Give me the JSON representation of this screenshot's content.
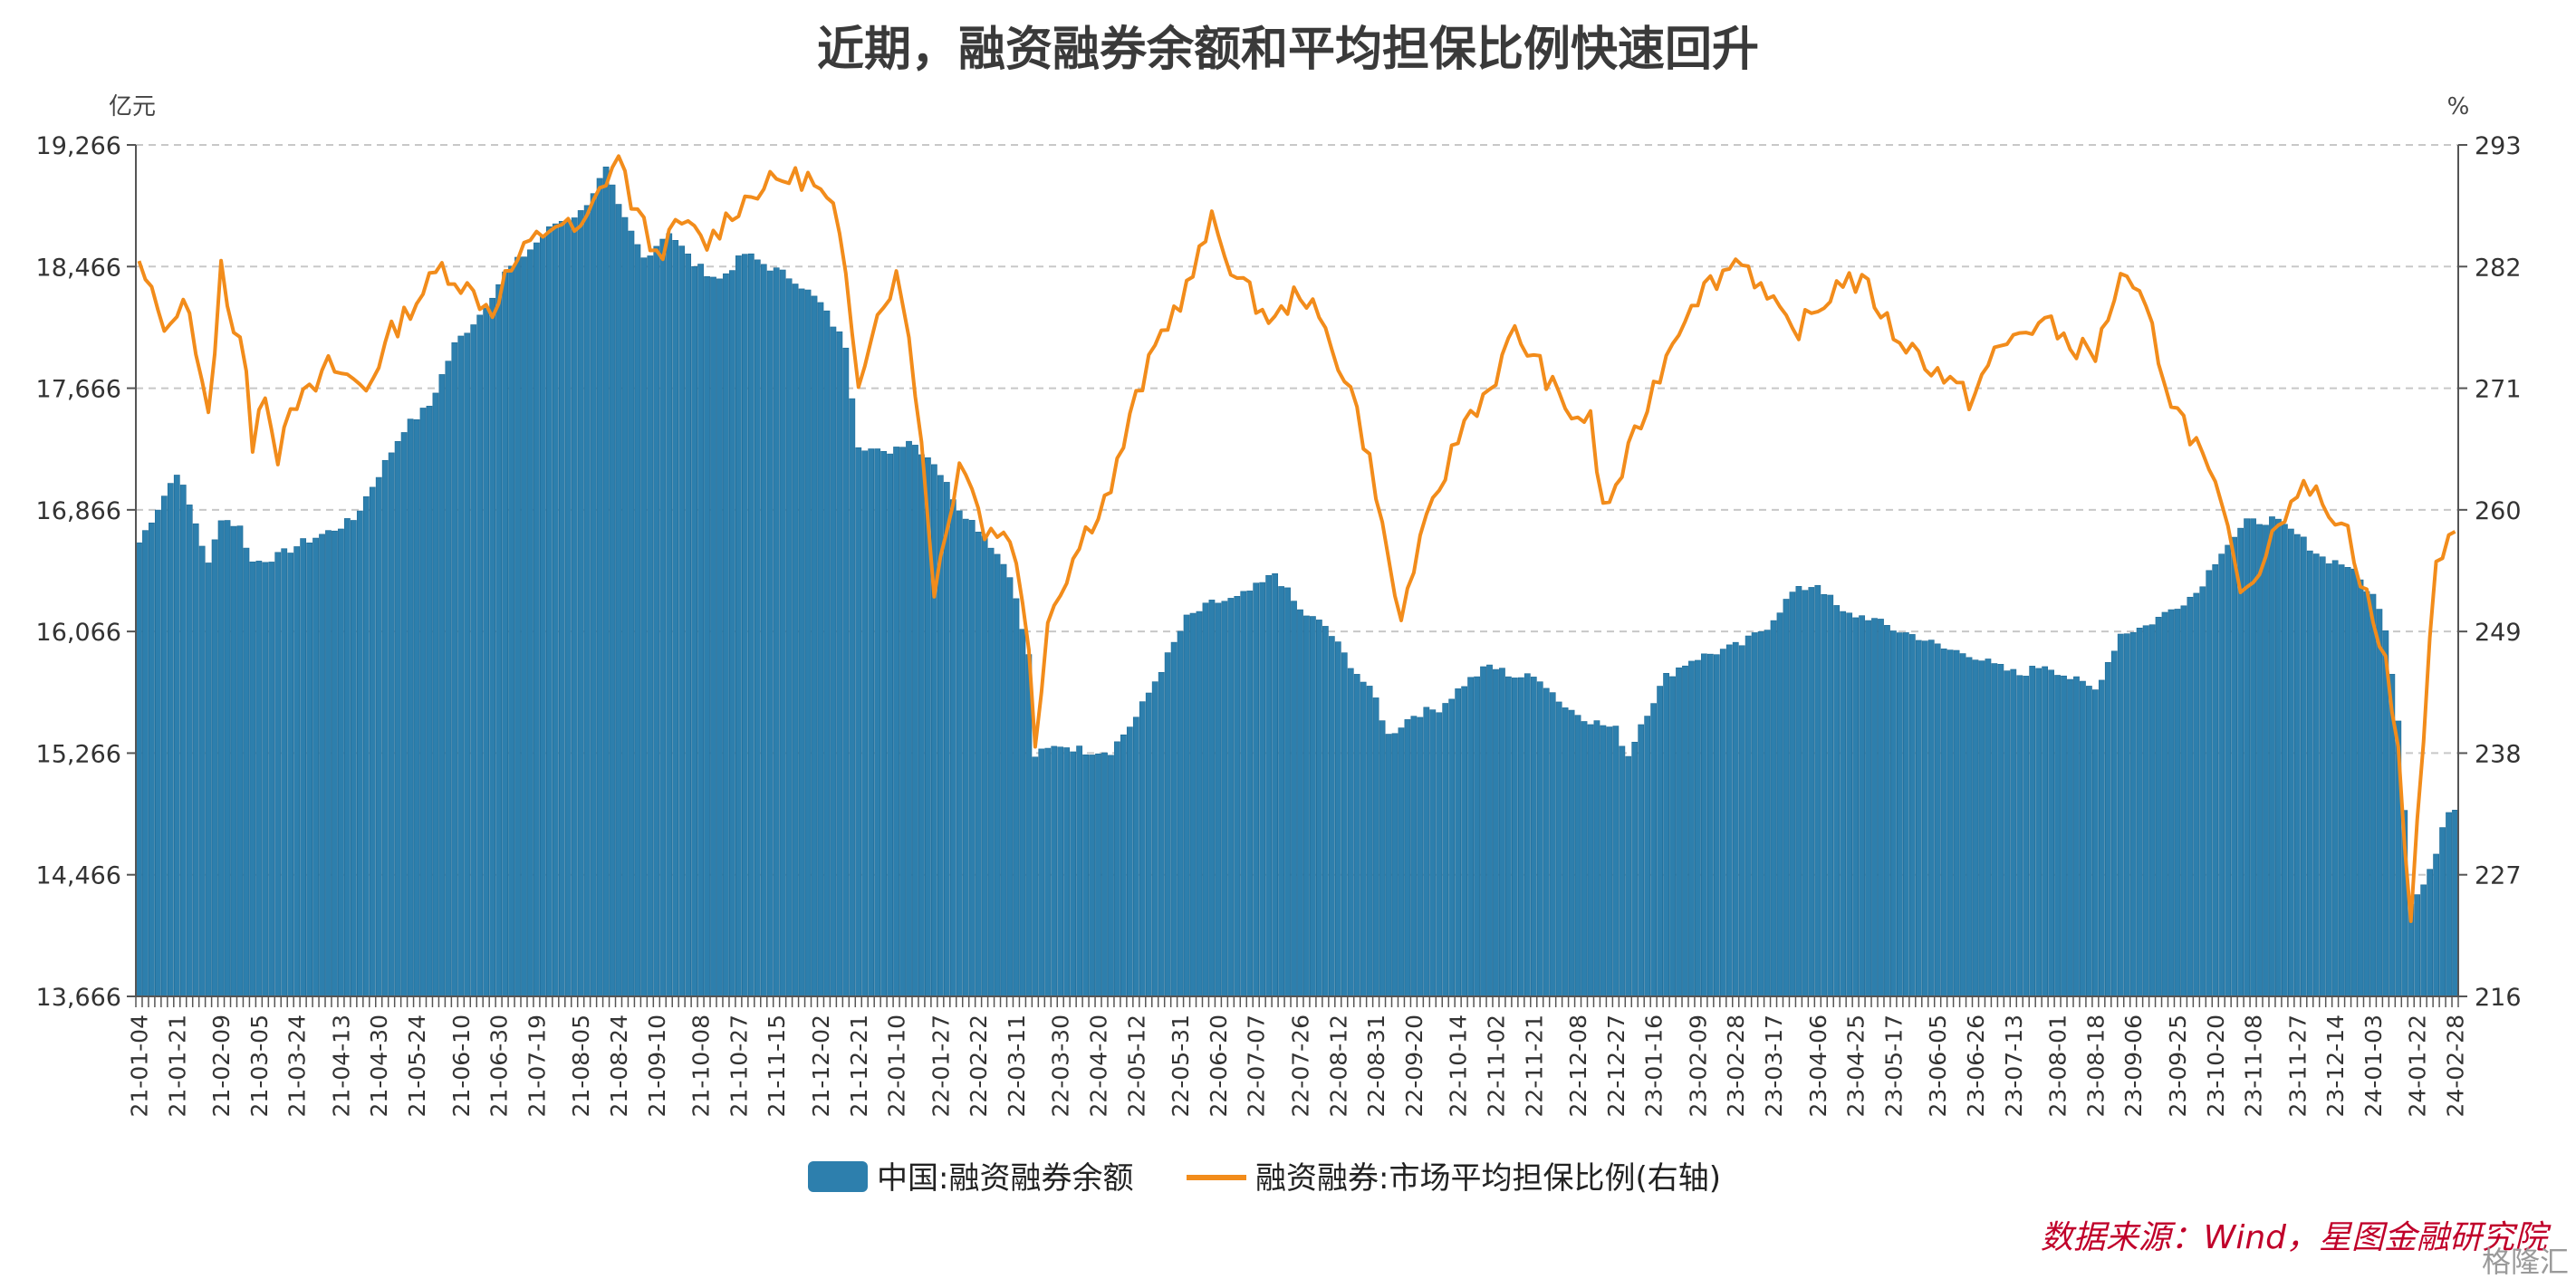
{
  "chart_data": {
    "type": "bar+line",
    "title": "近期，融资融券余额和平均担保比例快速回升",
    "left_unit": "亿元",
    "right_unit": "%",
    "y_left_ticks": [
      "19,266",
      "18,466",
      "17,666",
      "16,866",
      "16,066",
      "15,266",
      "14,466",
      "13,666"
    ],
    "y_left_range": [
      13666,
      19266
    ],
    "y_right_ticks": [
      "293",
      "282",
      "271",
      "260",
      "249",
      "238",
      "227",
      "216"
    ],
    "y_right_range": [
      216,
      293
    ],
    "x_tick_labels": [
      "21-01-04",
      "21-01-21",
      "21-02-09",
      "21-03-05",
      "21-03-24",
      "21-04-13",
      "21-04-30",
      "21-05-24",
      "21-06-10",
      "21-06-30",
      "21-07-19",
      "21-08-05",
      "21-08-24",
      "21-09-10",
      "21-10-08",
      "21-10-27",
      "21-11-15",
      "21-12-02",
      "21-12-21",
      "22-01-10",
      "22-01-27",
      "22-02-22",
      "22-03-11",
      "22-03-30",
      "22-04-20",
      "22-05-12",
      "22-05-31",
      "22-06-20",
      "22-07-07",
      "22-07-26",
      "22-08-12",
      "22-08-31",
      "22-09-20",
      "22-10-14",
      "22-11-02",
      "22-11-21",
      "22-12-08",
      "22-12-27",
      "23-01-16",
      "23-02-09",
      "23-02-28",
      "23-03-17",
      "23-04-06",
      "23-04-25",
      "23-05-17",
      "23-06-05",
      "23-06-26",
      "23-07-13",
      "23-08-01",
      "23-08-18",
      "23-09-06",
      "23-09-25",
      "23-10-20",
      "23-11-08",
      "23-11-27",
      "23-12-14",
      "24-01-03",
      "24-01-22",
      "24-02-28"
    ],
    "series": [
      {
        "name": "中国:融资融券余额",
        "axis": "left",
        "kind": "bar",
        "color": "#2d7fad",
        "anchor_points": [
          [
            0,
            16650
          ],
          [
            3,
            16880
          ],
          [
            6,
            17120
          ],
          [
            9,
            16780
          ],
          [
            11,
            16500
          ],
          [
            13,
            16820
          ],
          [
            16,
            16750
          ],
          [
            18,
            16520
          ],
          [
            22,
            16560
          ],
          [
            26,
            16650
          ],
          [
            30,
            16720
          ],
          [
            34,
            16800
          ],
          [
            38,
            17100
          ],
          [
            42,
            17400
          ],
          [
            46,
            17550
          ],
          [
            50,
            17950
          ],
          [
            54,
            18150
          ],
          [
            58,
            18420
          ],
          [
            62,
            18580
          ],
          [
            66,
            18750
          ],
          [
            70,
            18820
          ],
          [
            74,
            19100
          ],
          [
            76,
            18850
          ],
          [
            80,
            18520
          ],
          [
            84,
            18700
          ],
          [
            88,
            18480
          ],
          [
            92,
            18380
          ],
          [
            96,
            18550
          ],
          [
            100,
            18460
          ],
          [
            104,
            18380
          ],
          [
            108,
            18220
          ],
          [
            112,
            17950
          ],
          [
            114,
            17300
          ],
          [
            118,
            17230
          ],
          [
            122,
            17330
          ],
          [
            126,
            17180
          ],
          [
            130,
            16880
          ],
          [
            134,
            16700
          ],
          [
            138,
            16450
          ],
          [
            141,
            15900
          ],
          [
            142,
            15250
          ],
          [
            146,
            15320
          ],
          [
            150,
            15280
          ],
          [
            154,
            15280
          ],
          [
            158,
            15500
          ],
          [
            162,
            15820
          ],
          [
            166,
            16150
          ],
          [
            170,
            16250
          ],
          [
            174,
            16280
          ],
          [
            178,
            16380
          ],
          [
            180,
            16450
          ],
          [
            184,
            16200
          ],
          [
            188,
            16100
          ],
          [
            192,
            15850
          ],
          [
            196,
            15620
          ],
          [
            198,
            15380
          ],
          [
            202,
            15520
          ],
          [
            206,
            15560
          ],
          [
            210,
            15720
          ],
          [
            214,
            15840
          ],
          [
            218,
            15770
          ],
          [
            222,
            15760
          ],
          [
            226,
            15570
          ],
          [
            230,
            15480
          ],
          [
            234,
            15420
          ],
          [
            236,
            15250
          ],
          [
            238,
            15460
          ],
          [
            242,
            15770
          ],
          [
            246,
            15880
          ],
          [
            250,
            15930
          ],
          [
            254,
            15980
          ],
          [
            258,
            16100
          ],
          [
            262,
            16320
          ],
          [
            266,
            16380
          ],
          [
            270,
            16180
          ],
          [
            274,
            16160
          ],
          [
            278,
            16080
          ],
          [
            282,
            16030
          ],
          [
            286,
            15950
          ],
          [
            290,
            15920
          ],
          [
            294,
            15840
          ],
          [
            298,
            15780
          ],
          [
            302,
            15850
          ],
          [
            306,
            15760
          ],
          [
            310,
            15680
          ],
          [
            314,
            16050
          ],
          [
            318,
            16100
          ],
          [
            322,
            16210
          ],
          [
            326,
            16320
          ],
          [
            330,
            16600
          ],
          [
            334,
            16780
          ],
          [
            338,
            16800
          ],
          [
            342,
            16700
          ],
          [
            346,
            16550
          ],
          [
            350,
            16500
          ],
          [
            354,
            16300
          ],
          [
            356,
            16100
          ],
          [
            358,
            15500
          ],
          [
            360,
            14300
          ],
          [
            362,
            14400
          ],
          [
            364,
            14600
          ],
          [
            366,
            14900
          ]
        ]
      },
      {
        "name": "融资融券:市场平均担保比例(右轴)",
        "axis": "right",
        "kind": "line",
        "color": "#f28c1b",
        "anchor_points": [
          [
            0,
            282
          ],
          [
            3,
            278
          ],
          [
            5,
            276
          ],
          [
            7,
            280
          ],
          [
            8,
            278
          ],
          [
            10,
            271
          ],
          [
            11,
            268
          ],
          [
            13,
            282
          ],
          [
            14,
            278
          ],
          [
            16,
            276
          ],
          [
            17,
            273
          ],
          [
            18,
            265
          ],
          [
            20,
            271
          ],
          [
            22,
            265
          ],
          [
            24,
            270
          ],
          [
            26,
            270
          ],
          [
            28,
            271
          ],
          [
            30,
            273
          ],
          [
            33,
            272
          ],
          [
            36,
            271
          ],
          [
            40,
            276
          ],
          [
            44,
            279
          ],
          [
            48,
            282
          ],
          [
            52,
            280
          ],
          [
            56,
            278
          ],
          [
            58,
            281
          ],
          [
            62,
            284
          ],
          [
            66,
            286
          ],
          [
            70,
            285
          ],
          [
            74,
            290
          ],
          [
            76,
            292
          ],
          [
            78,
            288
          ],
          [
            82,
            283
          ],
          [
            86,
            286
          ],
          [
            90,
            284
          ],
          [
            94,
            287
          ],
          [
            98,
            289
          ],
          [
            102,
            290
          ],
          [
            106,
            290
          ],
          [
            110,
            287
          ],
          [
            112,
            281
          ],
          [
            114,
            272
          ],
          [
            116,
            276
          ],
          [
            118,
            279
          ],
          [
            120,
            281
          ],
          [
            122,
            276
          ],
          [
            124,
            266
          ],
          [
            126,
            253
          ],
          [
            128,
            258
          ],
          [
            130,
            265
          ],
          [
            132,
            262
          ],
          [
            134,
            258
          ],
          [
            138,
            258
          ],
          [
            141,
            248
          ],
          [
            142,
            239
          ],
          [
            144,
            250
          ],
          [
            146,
            253
          ],
          [
            150,
            258
          ],
          [
            154,
            262
          ],
          [
            158,
            270
          ],
          [
            162,
            276
          ],
          [
            166,
            280
          ],
          [
            170,
            286
          ],
          [
            174,
            281
          ],
          [
            178,
            278
          ],
          [
            180,
            277
          ],
          [
            184,
            280
          ],
          [
            188,
            276
          ],
          [
            192,
            271
          ],
          [
            196,
            262
          ],
          [
            198,
            255
          ],
          [
            200,
            250
          ],
          [
            202,
            255
          ],
          [
            206,
            262
          ],
          [
            210,
            268
          ],
          [
            214,
            271
          ],
          [
            218,
            276
          ],
          [
            222,
            273
          ],
          [
            226,
            269
          ],
          [
            230,
            268
          ],
          [
            232,
            260
          ],
          [
            234,
            262
          ],
          [
            238,
            268
          ],
          [
            242,
            274
          ],
          [
            246,
            279
          ],
          [
            250,
            281
          ],
          [
            254,
            283
          ],
          [
            258,
            279
          ],
          [
            262,
            276
          ],
          [
            266,
            278
          ],
          [
            270,
            281
          ],
          [
            274,
            280
          ],
          [
            278,
            276
          ],
          [
            282,
            274
          ],
          [
            286,
            272
          ],
          [
            290,
            270
          ],
          [
            294,
            274
          ],
          [
            298,
            276
          ],
          [
            302,
            277
          ],
          [
            306,
            275
          ],
          [
            310,
            274
          ],
          [
            314,
            281
          ],
          [
            318,
            278
          ],
          [
            322,
            270
          ],
          [
            326,
            266
          ],
          [
            330,
            260
          ],
          [
            332,
            255
          ],
          [
            334,
            252
          ],
          [
            338,
            258
          ],
          [
            342,
            262
          ],
          [
            346,
            261
          ],
          [
            350,
            258
          ],
          [
            352,
            254
          ],
          [
            354,
            250
          ],
          [
            356,
            246
          ],
          [
            358,
            238
          ],
          [
            360,
            223
          ],
          [
            362,
            240
          ],
          [
            364,
            255
          ],
          [
            366,
            258
          ],
          [
            367,
            257
          ]
        ]
      }
    ],
    "legend_position": "bottom"
  },
  "legend": {
    "bar_label": "中国:融资融券余额",
    "line_label": "融资融券:市场平均担保比例(右轴)"
  },
  "source_text": "数据来源：Wind，星图金融研究院",
  "watermark_text": "格隆汇",
  "colors": {
    "bar": "#2d7fad",
    "bar_edge": "#1d6a96",
    "line": "#f28c1b",
    "grid": "#c8c8c8",
    "source": "#c0002a"
  }
}
